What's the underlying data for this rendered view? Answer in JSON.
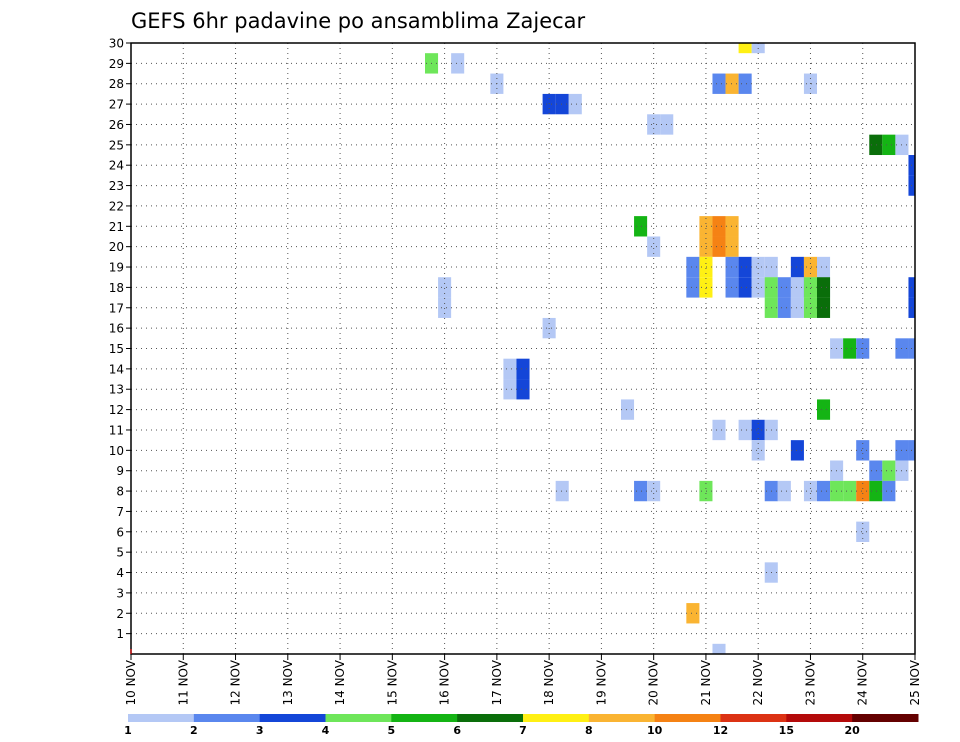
{
  "chart_data": {
    "type": "heatmap",
    "title": "GEFS 6hr padavine po ansamblima Zajecar",
    "xlabel": "",
    "ylabel": "",
    "x_ticks": [
      "10 NOV",
      "11 NOV",
      "12 NOV",
      "13 NOV",
      "14 NOV",
      "15 NOV",
      "16 NOV",
      "17 NOV",
      "18 NOV",
      "19 NOV",
      "20 NOV",
      "21 NOV",
      "22 NOV",
      "23 NOV",
      "24 NOV",
      "25 NOV"
    ],
    "x_range": [
      0,
      60
    ],
    "x_steps_per_day": 4,
    "y_ticks": [
      "1",
      "2",
      "3",
      "4",
      "5",
      "6",
      "7",
      "8",
      "9",
      "10",
      "11",
      "12",
      "13",
      "14",
      "15",
      "16",
      "17",
      "18",
      "19",
      "20",
      "21",
      "22",
      "23",
      "24",
      "25",
      "26",
      "27",
      "28",
      "29",
      "30"
    ],
    "y_range": [
      0,
      30
    ],
    "grid": true,
    "colorbar": {
      "position": "bottom",
      "labels": [
        "1",
        "2",
        "3",
        "4",
        "5",
        "6",
        "7",
        "8",
        "10",
        "12",
        "15",
        "20"
      ],
      "colors": [
        "#b4c8f5",
        "#5a87ee",
        "#1446d8",
        "#6ee65a",
        "#14b414",
        "#0a6e0a",
        "#fff014",
        "#fab432",
        "#f58214",
        "#dc3214",
        "#b40a0a",
        "#640000"
      ]
    },
    "cells_description": "each cell is [time_step_index (0 = 10 NOV 00z, 6h steps), ensemble_member, color_class_index]",
    "cells": [
      [
        47,
        30,
        6
      ],
      [
        48,
        30,
        0
      ],
      [
        23,
        29,
        3
      ],
      [
        25,
        29,
        0
      ],
      [
        28,
        28,
        0
      ],
      [
        45,
        28,
        1
      ],
      [
        46,
        28,
        7
      ],
      [
        47,
        28,
        1
      ],
      [
        52,
        28,
        0
      ],
      [
        32,
        27,
        2
      ],
      [
        33,
        27,
        2
      ],
      [
        34,
        27,
        0
      ],
      [
        40,
        26,
        0
      ],
      [
        41,
        26,
        0
      ],
      [
        57,
        25,
        5
      ],
      [
        58,
        25,
        4
      ],
      [
        59,
        25,
        0
      ],
      [
        60,
        24,
        2
      ],
      [
        60,
        23,
        2
      ],
      [
        39,
        21,
        4
      ],
      [
        44,
        21,
        7
      ],
      [
        45,
        21,
        8
      ],
      [
        46,
        21,
        7
      ],
      [
        40,
        20,
        0
      ],
      [
        44,
        20,
        7
      ],
      [
        45,
        20,
        8
      ],
      [
        46,
        20,
        7
      ],
      [
        43,
        19,
        1
      ],
      [
        44,
        19,
        6
      ],
      [
        46,
        19,
        1
      ],
      [
        47,
        19,
        2
      ],
      [
        48,
        19,
        0
      ],
      [
        49,
        19,
        0
      ],
      [
        51,
        19,
        2
      ],
      [
        52,
        19,
        7
      ],
      [
        53,
        19,
        0
      ],
      [
        43,
        18,
        1
      ],
      [
        44,
        18,
        6
      ],
      [
        46,
        18,
        1
      ],
      [
        47,
        18,
        2
      ],
      [
        48,
        18,
        0
      ],
      [
        49,
        18,
        0
      ],
      [
        51,
        18,
        2
      ],
      [
        52,
        18,
        7
      ],
      [
        53,
        18,
        0
      ],
      [
        24,
        18,
        0
      ],
      [
        49,
        18,
        3
      ],
      [
        50,
        18,
        1
      ],
      [
        51,
        18,
        0
      ],
      [
        52,
        18,
        3
      ],
      [
        53,
        18,
        5
      ],
      [
        60,
        18,
        2
      ],
      [
        24,
        17,
        0
      ],
      [
        49,
        17,
        3
      ],
      [
        50,
        17,
        1
      ],
      [
        51,
        17,
        0
      ],
      [
        52,
        17,
        3
      ],
      [
        53,
        17,
        5
      ],
      [
        60,
        17,
        2
      ],
      [
        32,
        16,
        0
      ],
      [
        54,
        15,
        0
      ],
      [
        55,
        15,
        4
      ],
      [
        56,
        15,
        1
      ],
      [
        59,
        15,
        1
      ],
      [
        60,
        15,
        1
      ],
      [
        29,
        14,
        0
      ],
      [
        30,
        14,
        2
      ],
      [
        29,
        13,
        0
      ],
      [
        30,
        13,
        2
      ],
      [
        38,
        12,
        0
      ],
      [
        53,
        12,
        4
      ],
      [
        45,
        11,
        0
      ],
      [
        47,
        11,
        0
      ],
      [
        48,
        11,
        2
      ],
      [
        49,
        11,
        0
      ],
      [
        48,
        10,
        0
      ],
      [
        51,
        10,
        2
      ],
      [
        56,
        10,
        1
      ],
      [
        59,
        10,
        1
      ],
      [
        60,
        10,
        1
      ],
      [
        54,
        9,
        0
      ],
      [
        57,
        9,
        1
      ],
      [
        58,
        9,
        3
      ],
      [
        59,
        9,
        0
      ],
      [
        33,
        8,
        0
      ],
      [
        39,
        8,
        1
      ],
      [
        40,
        8,
        0
      ],
      [
        44,
        8,
        3
      ],
      [
        49,
        8,
        1
      ],
      [
        50,
        8,
        0
      ],
      [
        52,
        8,
        0
      ],
      [
        53,
        8,
        1
      ],
      [
        54,
        8,
        3
      ],
      [
        55,
        8,
        3
      ],
      [
        56,
        8,
        8
      ],
      [
        57,
        8,
        4
      ],
      [
        58,
        8,
        1
      ],
      [
        56,
        6,
        0
      ],
      [
        49,
        4,
        0
      ],
      [
        43,
        2,
        7
      ],
      [
        45,
        0,
        0
      ]
    ]
  }
}
